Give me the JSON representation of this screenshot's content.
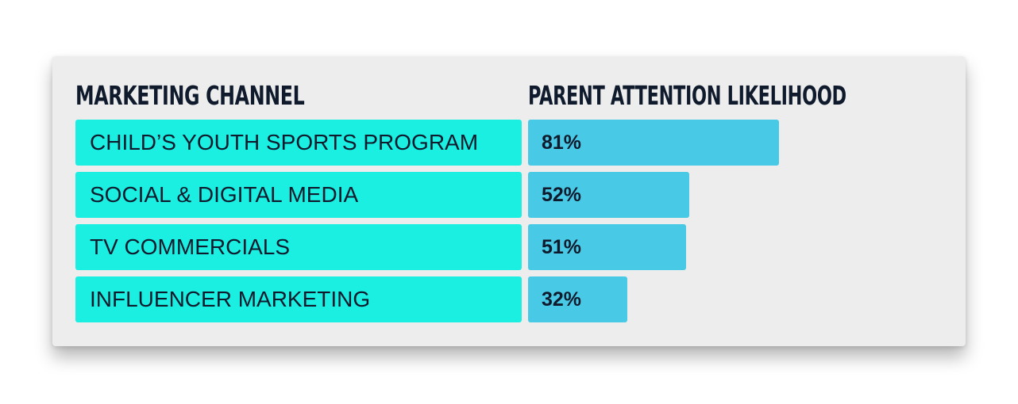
{
  "chart_data": {
    "type": "bar",
    "orientation": "horizontal",
    "headers": {
      "category": "MARKETING CHANNEL",
      "value": "PARENT ATTENTION LIKELIHOOD"
    },
    "categories": [
      "CHILD’S YOUTH SPORTS PROGRAM",
      "SOCIAL & DIGITAL MEDIA",
      "TV COMMERCIALS",
      "INFLUENCER MARKETING"
    ],
    "values": [
      81,
      52,
      51,
      32
    ],
    "value_labels": [
      "81%",
      "52%",
      "51%",
      "32%"
    ],
    "unit": "%",
    "colors": {
      "label_fill": "#1aefe2",
      "bar_fill": "#48c9e6",
      "text": "#0f1b2c",
      "panel": "#ededed"
    }
  }
}
